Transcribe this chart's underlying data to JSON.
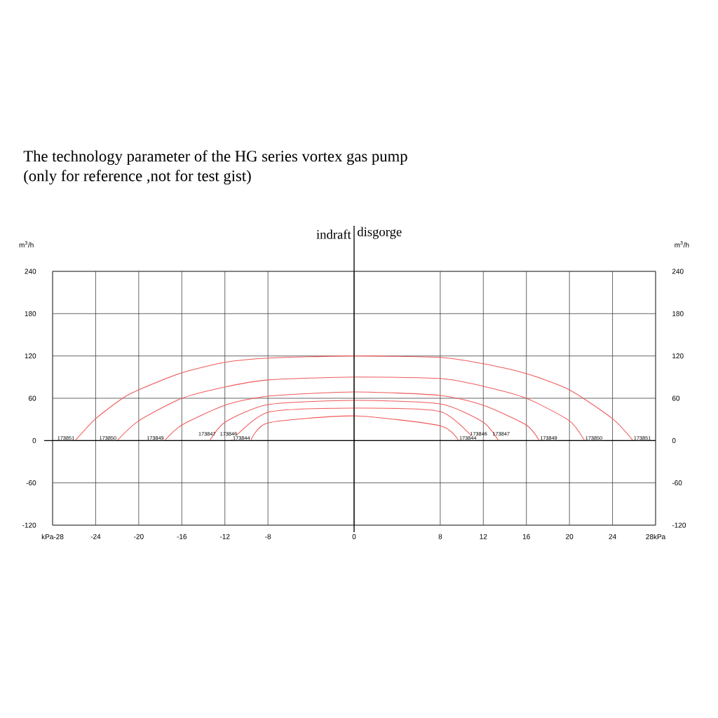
{
  "chart_data": {
    "type": "line",
    "title": "The technology parameter of the HG series vortex gas pump",
    "subtitle": "(only for reference ,not for test gist)",
    "ylabel": "m$^{3}$/h",
    "y2label": "m$^{3}$/h",
    "annotations": [
      "indraft",
      "disgorge"
    ],
    "xlim": [
      -28,
      28
    ],
    "xticks": [
      {
        "value": -28,
        "label": "kPa-28"
      },
      -24,
      -20,
      -16,
      -12,
      -8,
      0,
      8,
      12,
      16,
      20,
      24,
      {
        "value": 28,
        "label": "28kPa"
      }
    ],
    "ylim": [
      -120,
      240
    ],
    "yticks": [
      -120,
      -60,
      0,
      60,
      120,
      180,
      240
    ],
    "y2lim": [
      -120,
      240
    ],
    "y2ticks": [
      -120,
      -60,
      0,
      60,
      120,
      180,
      240
    ],
    "grid": true,
    "marker": "none",
    "line_style": "solid",
    "series": [
      {
        "name": "173851",
        "color": "#f05a5a",
        "x": [
          -25.9,
          -24,
          -21.5,
          -20,
          -16,
          -12,
          -8,
          0,
          8,
          12,
          16,
          20,
          24,
          25.9
        ],
        "values": [
          0,
          31,
          60,
          72,
          96,
          111,
          117,
          120,
          118,
          109,
          95,
          72,
          31,
          0
        ]
      },
      {
        "name": "173850",
        "color": "#f05a5a",
        "x": [
          -22,
          -20,
          -16,
          -12,
          -8,
          0,
          8,
          12,
          16,
          20,
          21.4
        ],
        "values": [
          0,
          28,
          60,
          76,
          86,
          90,
          88,
          77,
          60,
          28,
          0
        ]
      },
      {
        "name": "173849",
        "color": "#f05a5a",
        "x": [
          -17.6,
          -16,
          -12,
          -8,
          0,
          8,
          12,
          16,
          17.2
        ],
        "values": [
          0,
          22,
          50,
          63,
          69,
          64,
          50,
          22,
          0
        ]
      },
      {
        "name": "173847",
        "color": "#f05a5a",
        "x": [
          -13.4,
          -12,
          -8,
          0,
          8,
          12,
          13.4
        ],
        "values": [
          0,
          26,
          51,
          57,
          52,
          26,
          0
        ]
      },
      {
        "name": "173846",
        "color": "#f05a5a",
        "x": [
          -11.4,
          -8,
          0,
          8,
          11.3
        ],
        "values": [
          0,
          40,
          46,
          41,
          0
        ]
      },
      {
        "name": "173844",
        "color": "#f05a5a",
        "x": [
          -9.6,
          -8,
          0,
          8,
          9.7
        ],
        "values": [
          0,
          25,
          35,
          21,
          0
        ]
      }
    ]
  }
}
